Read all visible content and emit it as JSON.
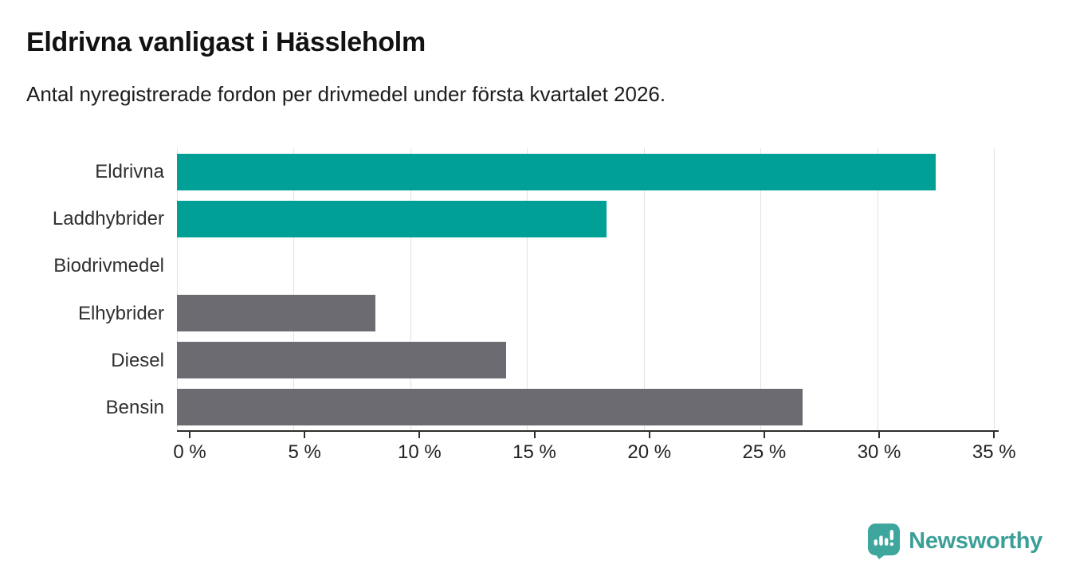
{
  "header": {
    "title": "Eldrivna vanligast i Hässleholm",
    "subtitle": "Antal nyregistrerade fordon per drivmedel under första kvartalet 2026."
  },
  "chart_data": {
    "type": "bar",
    "orientation": "horizontal",
    "title": "Eldrivna vanligast i Hässleholm",
    "subtitle": "Antal nyregistrerade fordon per drivmedel under första kvartalet 2026.",
    "categories": [
      "Eldrivna",
      "Laddhybrider",
      "Biodrivmedel",
      "Elhybrider",
      "Diesel",
      "Bensin"
    ],
    "values": [
      32.5,
      18.4,
      0,
      8.5,
      14.1,
      26.8
    ],
    "unit": "%",
    "bar_colors": [
      "#00a096",
      "#00a096",
      "#6b6b71",
      "#6b6b71",
      "#6b6b71",
      "#6b6b71"
    ],
    "highlight_color": "#00a096",
    "default_color": "#6b6b71",
    "x_tick_labels": [
      "0 %",
      "5 %",
      "10 %",
      "15 %",
      "20 %",
      "25 %",
      "30 %",
      "35 %"
    ],
    "x_tick_values": [
      0,
      5,
      10,
      15,
      20,
      25,
      30,
      35
    ],
    "xlim": [
      0,
      35.2
    ],
    "grid": "vertical-light",
    "legend": "none"
  },
  "footer": {
    "brand": "Newsworthy",
    "brand_color": "#3b9f98",
    "icon_color": "#3ea69d"
  }
}
